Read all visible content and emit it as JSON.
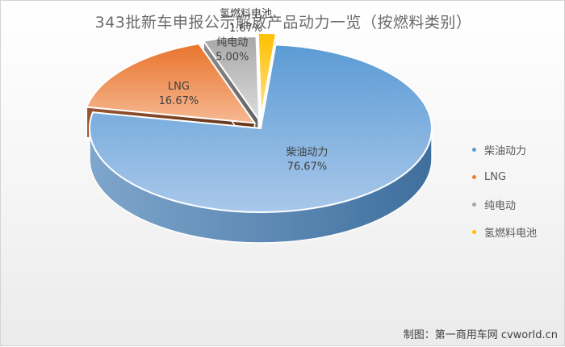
{
  "chart_data": {
    "type": "pie",
    "title": "343批新车申报公示解放产品动力一览（按燃料类别）",
    "categories": [
      "柴油动力",
      "LNG",
      "纯电动",
      "氢燃料电池"
    ],
    "values": [
      76.67,
      16.67,
      5.0,
      1.67
    ],
    "value_labels": [
      "76.67%",
      "16.67%",
      "5.00%",
      "1.67%"
    ],
    "colors": [
      "#5b9bd5",
      "#ed7d31",
      "#a5a5a5",
      "#ffc000"
    ],
    "legend_position": "right",
    "style": "3d exploded pie"
  },
  "credit": "制图：第一商用车网 cvworld.cn"
}
